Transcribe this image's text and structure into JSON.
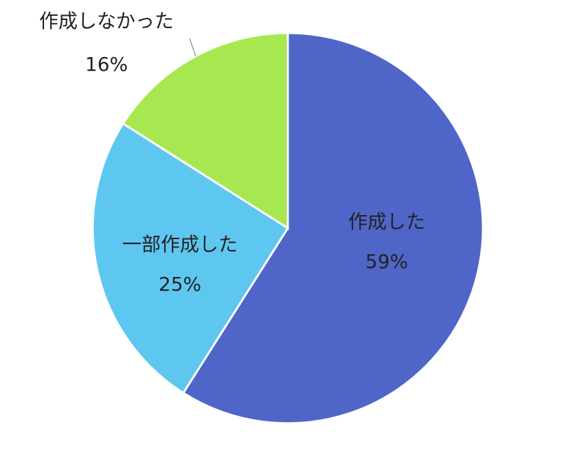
{
  "chart_data": {
    "type": "pie",
    "start_angle": "top",
    "direction": "clockwise",
    "slices": [
      {
        "label": "作成した",
        "value": 59,
        "value_label": "59%",
        "color": "#4f66c8"
      },
      {
        "label": "一部作成した",
        "value": 25,
        "value_label": "25%",
        "color": "#5ec7f0"
      },
      {
        "label": "作成しなかった",
        "value": 16,
        "value_label": "16%",
        "color": "#a7e850"
      }
    ]
  }
}
